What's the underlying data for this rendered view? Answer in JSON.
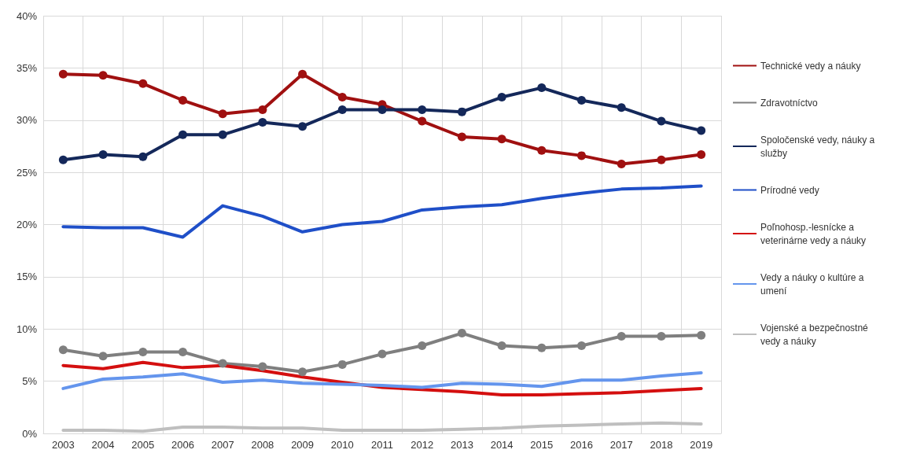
{
  "chart_data": {
    "type": "line",
    "categories": [
      "2003",
      "2004",
      "2005",
      "2006",
      "2007",
      "2008",
      "2009",
      "2010",
      "2011",
      "2012",
      "2013",
      "2014",
      "2015",
      "2016",
      "2017",
      "2018",
      "2019"
    ],
    "series": [
      {
        "name": "Technické vedy a náuky",
        "color": "#a01010",
        "marker": "circle",
        "values": [
          34.4,
          34.3,
          33.5,
          31.9,
          30.6,
          31.0,
          34.4,
          32.2,
          31.5,
          29.9,
          28.4,
          28.2,
          27.1,
          26.6,
          25.8,
          26.2,
          26.7
        ]
      },
      {
        "name": "Zdravotníctvo",
        "color": "#7f7f7f",
        "marker": "circle",
        "values": [
          8.0,
          7.4,
          7.8,
          7.8,
          6.7,
          6.4,
          5.9,
          6.6,
          7.6,
          8.4,
          9.6,
          8.4,
          8.2,
          8.4,
          9.3,
          9.3,
          9.4
        ]
      },
      {
        "name": "Spoločenské vedy, náuky a služby",
        "color": "#14285a",
        "marker": "circle",
        "values": [
          26.2,
          26.7,
          26.5,
          28.6,
          28.6,
          29.8,
          29.4,
          31.0,
          31.0,
          31.0,
          30.8,
          32.2,
          33.1,
          31.9,
          31.2,
          29.9,
          29.0
        ]
      },
      {
        "name": "Prírodné vedy",
        "color": "#1f4fc8",
        "marker": "none",
        "values": [
          19.8,
          19.7,
          19.7,
          18.8,
          21.8,
          20.8,
          19.3,
          20.0,
          20.3,
          21.4,
          21.7,
          21.9,
          22.5,
          23.0,
          23.4,
          23.5,
          23.7
        ]
      },
      {
        "name": "Poľnohosp.-lesnícke a veterinárne vedy a náuky",
        "color": "#d40f0f",
        "marker": "none",
        "values": [
          6.5,
          6.2,
          6.8,
          6.3,
          6.5,
          6.0,
          5.4,
          4.9,
          4.4,
          4.2,
          4.0,
          3.7,
          3.7,
          3.8,
          3.9,
          4.1,
          4.3
        ]
      },
      {
        "name": "Vedy a náuky o kultúre a umení",
        "color": "#6495ed",
        "marker": "none",
        "values": [
          4.3,
          5.2,
          5.4,
          5.7,
          4.9,
          5.1,
          4.8,
          4.7,
          4.6,
          4.4,
          4.8,
          4.7,
          4.5,
          5.1,
          5.1,
          5.5,
          5.8
        ]
      },
      {
        "name": "Vojenské a bezpečnostné vedy a náuky",
        "color": "#bfbfbf",
        "marker": "none",
        "values": [
          0.3,
          0.3,
          0.2,
          0.6,
          0.6,
          0.5,
          0.5,
          0.3,
          0.3,
          0.3,
          0.4,
          0.5,
          0.7,
          0.8,
          0.9,
          1.0,
          0.9
        ]
      }
    ],
    "ylim": [
      0,
      40
    ],
    "yticks": [
      {
        "value": 0,
        "label": "0%"
      },
      {
        "value": 5,
        "label": "5%"
      },
      {
        "value": 10,
        "label": "10%"
      },
      {
        "value": 15,
        "label": "15%"
      },
      {
        "value": 20,
        "label": "20%"
      },
      {
        "value": 25,
        "label": "25%"
      },
      {
        "value": 30,
        "label": "30%"
      },
      {
        "value": 35,
        "label": "35%"
      },
      {
        "value": 40,
        "label": "40%"
      }
    ],
    "grid": true,
    "legend": "right",
    "line_style": "solid"
  }
}
